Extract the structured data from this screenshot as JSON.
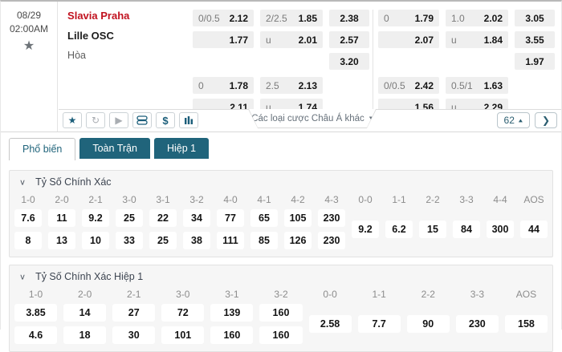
{
  "match": {
    "date": "08/29",
    "time": "02:00AM",
    "home_team": "Slavia Praha",
    "away_team": "Lille OSC",
    "draw_label": "Hòa",
    "home_color": "#c1121f"
  },
  "top_odds": {
    "left_group": {
      "main": [
        [
          {
            "h": "0/0.5",
            "o": "2.12"
          },
          {
            "h": "2/2.5",
            "o": "1.85"
          },
          {
            "o": "2.38"
          }
        ],
        [
          {
            "h": "",
            "o": "1.77"
          },
          {
            "h": "u",
            "o": "2.01"
          },
          {
            "o": "2.57"
          }
        ],
        [
          null,
          null,
          {
            "o": "3.20"
          }
        ]
      ],
      "second": [
        [
          {
            "h": "0",
            "o": "1.78"
          },
          {
            "h": "2.5",
            "o": "2.13"
          },
          null
        ],
        [
          {
            "h": "",
            "o": "2.11"
          },
          {
            "h": "u",
            "o": "1.74"
          },
          null
        ]
      ]
    },
    "right_group": {
      "main": [
        [
          {
            "h": "0",
            "o": "1.79"
          },
          {
            "h": "1.0",
            "o": "2.02"
          },
          {
            "o": "3.05"
          }
        ],
        [
          {
            "h": "",
            "o": "2.07"
          },
          {
            "h": "u",
            "o": "1.84"
          },
          {
            "o": "3.55"
          }
        ],
        [
          null,
          null,
          {
            "o": "1.97"
          }
        ]
      ],
      "second": [
        [
          {
            "h": "0/0.5",
            "o": "2.42"
          },
          {
            "h": "0.5/1",
            "o": "1.63"
          },
          null
        ],
        [
          {
            "h": "",
            "o": "1.56"
          },
          {
            "h": "u",
            "o": "2.29"
          },
          null
        ]
      ]
    }
  },
  "toolbar": {
    "more_bets_label": "Các loại cược Châu Á khác",
    "markets_count": "62",
    "icons": [
      "star-icon",
      "refresh-icon",
      "play-icon",
      "stack-icon",
      "dollar-icon",
      "bar-chart-icon"
    ],
    "accent_color": "#1b5e7a"
  },
  "tabs": [
    {
      "label": "Phổ biến",
      "active": true
    },
    {
      "label": "Toàn Trận",
      "active": false
    },
    {
      "label": "Hiệp 1",
      "active": false
    }
  ],
  "sections": [
    {
      "title": "Tỷ Số Chính Xác",
      "columns": [
        "1-0",
        "2-0",
        "2-1",
        "3-0",
        "3-1",
        "3-2",
        "4-0",
        "4-1",
        "4-2",
        "4-3",
        "0-0",
        "1-1",
        "2-2",
        "3-3",
        "4-4",
        "AOS"
      ],
      "home_row": [
        "7.6",
        "11",
        "9.2",
        "25",
        "22",
        "34",
        "77",
        "65",
        "105",
        "230"
      ],
      "middle_row": [
        "9.2",
        "6.2",
        "15",
        "84",
        "300",
        "44"
      ],
      "away_row": [
        "8",
        "13",
        "10",
        "33",
        "25",
        "38",
        "111",
        "85",
        "126",
        "230"
      ]
    },
    {
      "title": "Tỷ Số Chính Xác Hiệp 1",
      "columns": [
        "1-0",
        "2-0",
        "2-1",
        "3-0",
        "3-1",
        "3-2",
        "0-0",
        "1-1",
        "2-2",
        "3-3",
        "AOS"
      ],
      "home_row": [
        "3.85",
        "14",
        "27",
        "72",
        "139",
        "160"
      ],
      "middle_row": [
        "2.58",
        "7.7",
        "90",
        "230",
        "158"
      ],
      "away_row": [
        "4.6",
        "18",
        "30",
        "101",
        "160",
        "160"
      ]
    }
  ]
}
